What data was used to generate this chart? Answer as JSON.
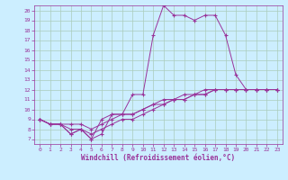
{
  "xlabel": "Windchill (Refroidissement éolien,°C)",
  "bg_color": "#cceeff",
  "grid_color": "#aaccbb",
  "line_color": "#993399",
  "xlim": [
    -0.5,
    23.5
  ],
  "ylim": [
    6.5,
    20.5
  ],
  "xticks": [
    0,
    1,
    2,
    3,
    4,
    5,
    6,
    7,
    8,
    9,
    10,
    11,
    12,
    13,
    14,
    15,
    16,
    17,
    18,
    19,
    20,
    21,
    22,
    23
  ],
  "yticks": [
    7,
    8,
    9,
    10,
    11,
    12,
    13,
    14,
    15,
    16,
    17,
    18,
    19,
    20
  ],
  "line1": [
    9.0,
    8.5,
    8.5,
    7.5,
    8.0,
    7.0,
    7.5,
    9.5,
    9.5,
    11.5,
    11.5,
    17.5,
    20.5,
    19.5,
    19.5,
    19.0,
    19.5,
    19.5,
    17.5,
    13.5,
    12.0,
    12.0,
    12.0,
    12.0
  ],
  "line2": [
    9.0,
    8.5,
    8.5,
    7.5,
    8.0,
    7.0,
    9.0,
    9.5,
    9.5,
    9.5,
    10.0,
    10.5,
    10.5,
    11.0,
    11.0,
    11.5,
    11.5,
    12.0,
    12.0,
    12.0,
    12.0,
    12.0,
    12.0,
    12.0
  ],
  "line3": [
    9.0,
    8.5,
    8.5,
    8.5,
    8.5,
    8.0,
    8.5,
    9.0,
    9.5,
    9.5,
    10.0,
    10.5,
    11.0,
    11.0,
    11.5,
    11.5,
    12.0,
    12.0,
    12.0,
    12.0,
    12.0,
    12.0,
    12.0,
    12.0
  ],
  "line4": [
    9.0,
    8.5,
    8.5,
    8.0,
    8.0,
    7.5,
    8.0,
    8.5,
    9.0,
    9.0,
    9.5,
    10.0,
    10.5,
    11.0,
    11.0,
    11.5,
    11.5,
    12.0,
    12.0,
    12.0,
    12.0,
    12.0,
    12.0,
    12.0
  ]
}
